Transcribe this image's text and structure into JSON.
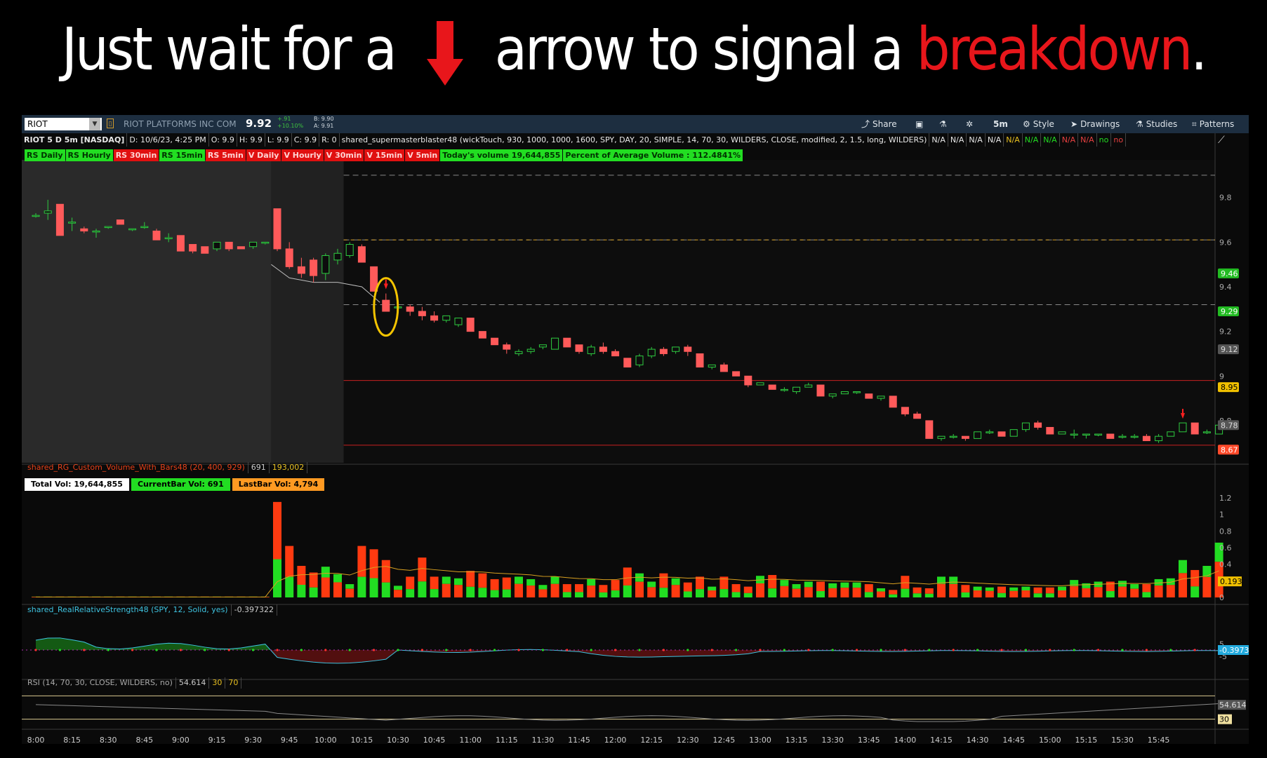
{
  "headline": {
    "pre": "Just wait for a",
    "mid": "arrow to signal a",
    "hl": "breakdown",
    "end": ".",
    "color": "#e8161b"
  },
  "toolbar": {
    "symbol": "RIOT",
    "company": "RIOT PLATFORMS INC COM",
    "last": "9.92",
    "change": "+.91",
    "change_pct": "+10.10%",
    "bid": "B: 9.90",
    "ask": "A: 9.91",
    "buttons": [
      {
        "label": "Share",
        "icon": "share-icon"
      },
      {
        "label": "",
        "icon": "flask-icon"
      },
      {
        "label": "",
        "icon": "lab-icon"
      },
      {
        "label": "",
        "icon": "gear-icon"
      },
      {
        "label": "5m",
        "icon": ""
      },
      {
        "label": "Style",
        "icon": "style-icon"
      },
      {
        "label": "Drawings",
        "icon": "cursor-icon"
      },
      {
        "label": "Studies",
        "icon": "flask-icon"
      },
      {
        "label": "Patterns",
        "icon": "pattern-icon"
      }
    ]
  },
  "subheader": {
    "title": "RIOT 5 D 5m [NASDAQ]",
    "date": "D: 10/6/23, 4:25 PM",
    "open": "O: 9.9",
    "high": "H: 9.9",
    "low": "L: 9.9",
    "close": "C: 9.9",
    "range": "R: 0",
    "study": "shared_supermasterblaster48 (wickTouch, 930, 1000, 1000, 1600, SPY, DAY, 20, SIMPLE, 14, 70, 30, WILDERS, CLOSE, modified, 2, 1.5, long, WILDERS)",
    "flags": [
      {
        "t": "N/A",
        "c": "#e8e8e8"
      },
      {
        "t": "N/A",
        "c": "#e8e8e8"
      },
      {
        "t": "N/A",
        "c": "#e8e8e8"
      },
      {
        "t": "N/A",
        "c": "#e8e8e8"
      },
      {
        "t": "N/A",
        "c": "#e8c020"
      },
      {
        "t": "N/A",
        "c": "#22dd22"
      },
      {
        "t": "N/A",
        "c": "#22dd22"
      },
      {
        "t": "N/A",
        "c": "#e84040"
      },
      {
        "t": "N/A",
        "c": "#e84040"
      },
      {
        "t": "no",
        "c": "#22dd22"
      },
      {
        "t": "no",
        "c": "#e84040"
      }
    ]
  },
  "tags": [
    {
      "t": "RS Daily",
      "c": "g"
    },
    {
      "t": "RS Hourly",
      "c": "g"
    },
    {
      "t": "RS 30min",
      "c": "r"
    },
    {
      "t": "RS 15min",
      "c": "g"
    },
    {
      "t": "RS 5min",
      "c": "r"
    },
    {
      "t": "V Daily",
      "c": "r"
    },
    {
      "t": "V Hourly",
      "c": "r"
    },
    {
      "t": "V 30min",
      "c": "r"
    },
    {
      "t": "V 15min",
      "c": "r"
    },
    {
      "t": "V 5min",
      "c": "r"
    },
    {
      "t": "Today's volume   19,644,855",
      "c": "g"
    },
    {
      "t": "Percent of Average Volume : 112.4841%",
      "c": "g"
    }
  ],
  "price_axis": {
    "ticks": [
      "9.8",
      "9.6",
      "9.4",
      "9.2",
      "9",
      "8.8"
    ],
    "ylim": [
      8.63,
      9.95
    ],
    "labels": [
      {
        "t": "9.46",
        "bg": "#22bb22",
        "fg": "#fff"
      },
      {
        "t": "9.29",
        "bg": "#22bb22",
        "fg": "#fff"
      },
      {
        "t": "9.12",
        "bg": "#555",
        "fg": "#ddd"
      },
      {
        "t": "8.95",
        "bg": "#f0c000",
        "fg": "#000"
      },
      {
        "t": "8.78",
        "bg": "#555",
        "fg": "#ddd"
      },
      {
        "t": "8.67",
        "bg": "#ff4a2a",
        "fg": "#fff"
      }
    ]
  },
  "levels": {
    "dashed": [
      9.9,
      9.61,
      9.32
    ],
    "red": [
      8.98,
      8.69
    ],
    "orange_dashed": [
      9.61
    ]
  },
  "volume_study": {
    "name": "shared_RG_Custom_Volume_With_Bars48 (20, 400, 929)",
    "v1": "691",
    "v2": "193,002",
    "boxes": [
      {
        "t": "Total Vol: 19,644,855",
        "bg": "#fff",
        "fg": "#000"
      },
      {
        "t": "CurrentBar Vol: 691",
        "bg": "#22dd22",
        "fg": "#000"
      },
      {
        "t": "LastBar Vol: 4,794",
        "bg": "#ff9a22",
        "fg": "#000"
      }
    ],
    "ticks": [
      "1.2",
      "1",
      "0.8",
      "0.6",
      "0.4",
      "0.2",
      "0"
    ],
    "ylim": [
      0,
      1.25
    ],
    "label": "0.193"
  },
  "rrs_study": {
    "name": "shared_RealRelativeStrength48 (SPY, 12, Solid, yes)",
    "value": "-0.397322",
    "ticks": [
      "5",
      "-5"
    ],
    "label": "-0.3973"
  },
  "rsi_study": {
    "name": "RSI (14, 70, 30, CLOSE, WILDERS, no)",
    "value": "54.614",
    "ob": "30",
    "os": "70",
    "labels": [
      "54.614",
      "30"
    ]
  },
  "time_axis": [
    "8:00",
    "8:15",
    "8:30",
    "8:45",
    "9:00",
    "9:15",
    "9:30",
    "9:45",
    "10:00",
    "10:15",
    "10:30",
    "10:45",
    "11:00",
    "11:15",
    "11:30",
    "11:45",
    "12:00",
    "12:15",
    "12:30",
    "12:45",
    "13:00",
    "13:15",
    "13:30",
    "13:45",
    "14:00",
    "14:15",
    "14:30",
    "14:45",
    "15:00",
    "15:15",
    "15:30",
    "15:45"
  ],
  "chart_data": {
    "type": "candlestick",
    "x_start": "8:00",
    "interval_min": 5,
    "ohlc": [
      [
        9.72,
        9.73,
        9.71,
        9.72
      ],
      [
        9.73,
        9.79,
        9.7,
        9.74
      ],
      [
        9.77,
        9.77,
        9.63,
        9.63
      ],
      [
        9.69,
        9.71,
        9.65,
        9.69
      ],
      [
        9.66,
        9.67,
        9.64,
        9.65
      ],
      [
        9.65,
        9.66,
        9.62,
        9.65
      ],
      [
        9.67,
        9.67,
        9.66,
        9.67
      ],
      [
        9.7,
        9.7,
        9.68,
        9.68
      ],
      [
        9.66,
        9.66,
        9.65,
        9.66
      ],
      [
        9.67,
        9.69,
        9.66,
        9.67
      ],
      [
        9.65,
        9.66,
        9.61,
        9.61
      ],
      [
        9.62,
        9.64,
        9.6,
        9.62
      ],
      [
        9.63,
        9.63,
        9.56,
        9.56
      ],
      [
        9.59,
        9.59,
        9.55,
        9.56
      ],
      [
        9.58,
        9.58,
        9.55,
        9.55
      ],
      [
        9.57,
        9.6,
        9.56,
        9.6
      ],
      [
        9.6,
        9.6,
        9.56,
        9.57
      ],
      [
        9.58,
        9.58,
        9.57,
        9.57
      ],
      [
        9.58,
        9.6,
        9.57,
        9.6
      ],
      [
        9.6,
        9.6,
        9.59,
        9.6
      ],
      [
        9.75,
        9.75,
        9.56,
        9.57
      ],
      [
        9.57,
        9.6,
        9.48,
        9.49
      ],
      [
        9.49,
        9.53,
        9.44,
        9.46
      ],
      [
        9.52,
        9.53,
        9.42,
        9.45
      ],
      [
        9.46,
        9.55,
        9.43,
        9.54
      ],
      [
        9.52,
        9.57,
        9.5,
        9.55
      ],
      [
        9.54,
        9.6,
        9.53,
        9.59
      ],
      [
        9.58,
        9.59,
        9.51,
        9.51
      ],
      [
        9.49,
        9.49,
        9.38,
        9.38
      ],
      [
        9.34,
        9.37,
        9.29,
        9.29
      ],
      [
        9.31,
        9.32,
        9.28,
        9.31
      ],
      [
        9.31,
        9.32,
        9.27,
        9.29
      ],
      [
        9.29,
        9.31,
        9.25,
        9.27
      ],
      [
        9.27,
        9.29,
        9.24,
        9.25
      ],
      [
        9.25,
        9.27,
        9.24,
        9.27
      ],
      [
        9.23,
        9.26,
        9.22,
        9.26
      ],
      [
        9.26,
        9.26,
        9.2,
        9.2
      ],
      [
        9.2,
        9.2,
        9.17,
        9.17
      ],
      [
        9.17,
        9.17,
        9.14,
        9.14
      ],
      [
        9.14,
        9.15,
        9.1,
        9.12
      ],
      [
        9.1,
        9.12,
        9.09,
        9.11
      ],
      [
        9.11,
        9.13,
        9.1,
        9.12
      ],
      [
        9.13,
        9.14,
        9.12,
        9.14
      ],
      [
        9.12,
        9.17,
        9.12,
        9.17
      ],
      [
        9.17,
        9.17,
        9.13,
        9.13
      ],
      [
        9.14,
        9.14,
        9.1,
        9.11
      ],
      [
        9.1,
        9.14,
        9.09,
        9.13
      ],
      [
        9.13,
        9.15,
        9.1,
        9.11
      ],
      [
        9.11,
        9.12,
        9.09,
        9.09
      ],
      [
        9.08,
        9.08,
        9.04,
        9.04
      ],
      [
        9.05,
        9.1,
        9.04,
        9.09
      ],
      [
        9.09,
        9.13,
        9.08,
        9.12
      ],
      [
        9.12,
        9.13,
        9.09,
        9.1
      ],
      [
        9.11,
        9.13,
        9.1,
        9.13
      ],
      [
        9.13,
        9.14,
        9.09,
        9.11
      ],
      [
        9.1,
        9.1,
        9.04,
        9.04
      ],
      [
        9.04,
        9.05,
        9.03,
        9.05
      ],
      [
        9.05,
        9.06,
        9.02,
        9.02
      ],
      [
        9.02,
        9.02,
        9.0,
        9.0
      ],
      [
        9.0,
        9.0,
        8.95,
        8.96
      ],
      [
        8.96,
        8.97,
        8.96,
        8.97
      ],
      [
        8.96,
        8.96,
        8.94,
        8.94
      ],
      [
        8.94,
        8.95,
        8.93,
        8.94
      ],
      [
        8.93,
        8.95,
        8.92,
        8.95
      ],
      [
        8.95,
        8.97,
        8.95,
        8.96
      ],
      [
        8.96,
        8.96,
        8.91,
        8.91
      ],
      [
        8.91,
        8.92,
        8.9,
        8.92
      ],
      [
        8.92,
        8.93,
        8.92,
        8.93
      ],
      [
        8.93,
        8.93,
        8.92,
        8.93
      ],
      [
        8.92,
        8.92,
        8.9,
        8.9
      ],
      [
        8.9,
        8.91,
        8.89,
        8.91
      ],
      [
        8.91,
        8.91,
        8.86,
        8.86
      ],
      [
        8.86,
        8.86,
        8.82,
        8.83
      ],
      [
        8.83,
        8.84,
        8.81,
        8.81
      ],
      [
        8.8,
        8.8,
        8.72,
        8.72
      ],
      [
        8.72,
        8.73,
        8.71,
        8.73
      ],
      [
        8.73,
        8.74,
        8.72,
        8.73
      ],
      [
        8.73,
        8.73,
        8.71,
        8.72
      ],
      [
        8.72,
        8.75,
        8.72,
        8.75
      ],
      [
        8.75,
        8.76,
        8.74,
        8.75
      ],
      [
        8.75,
        8.75,
        8.73,
        8.73
      ],
      [
        8.73,
        8.76,
        8.73,
        8.76
      ],
      [
        8.76,
        8.79,
        8.75,
        8.79
      ],
      [
        8.79,
        8.8,
        8.76,
        8.77
      ],
      [
        8.77,
        8.77,
        8.74,
        8.74
      ],
      [
        8.74,
        8.75,
        8.74,
        8.75
      ],
      [
        8.74,
        8.76,
        8.72,
        8.74
      ],
      [
        8.74,
        8.74,
        8.72,
        8.74
      ],
      [
        8.74,
        8.74,
        8.73,
        8.74
      ],
      [
        8.74,
        8.74,
        8.72,
        8.72
      ],
      [
        8.73,
        8.74,
        8.72,
        8.73
      ],
      [
        8.73,
        8.74,
        8.72,
        8.73
      ],
      [
        8.73,
        8.74,
        8.71,
        8.71
      ],
      [
        8.71,
        8.74,
        8.7,
        8.73
      ],
      [
        8.73,
        8.75,
        8.73,
        8.75
      ],
      [
        8.75,
        8.79,
        8.75,
        8.79
      ],
      [
        8.79,
        8.79,
        8.74,
        8.74
      ],
      [
        8.75,
        8.76,
        8.74,
        8.75
      ],
      [
        8.74,
        8.78,
        8.74,
        8.78
      ]
    ],
    "volume": [
      0.01,
      0.01,
      0.01,
      0.01,
      0.01,
      0.01,
      0.01,
      0.01,
      0.01,
      0.01,
      0.01,
      0.01,
      0.01,
      0.01,
      0.01,
      0.01,
      0.01,
      0.01,
      0.01,
      0.01,
      1.15,
      0.62,
      0.38,
      0.3,
      0.37,
      0.28,
      0.16,
      0.62,
      0.58,
      0.45,
      0.14,
      0.25,
      0.48,
      0.25,
      0.25,
      0.23,
      0.32,
      0.29,
      0.22,
      0.24,
      0.25,
      0.22,
      0.15,
      0.25,
      0.16,
      0.16,
      0.22,
      0.15,
      0.21,
      0.36,
      0.29,
      0.19,
      0.29,
      0.23,
      0.18,
      0.25,
      0.13,
      0.25,
      0.16,
      0.13,
      0.26,
      0.27,
      0.21,
      0.16,
      0.19,
      0.19,
      0.17,
      0.18,
      0.18,
      0.16,
      0.11,
      0.09,
      0.26,
      0.12,
      0.11,
      0.25,
      0.25,
      0.15,
      0.13,
      0.12,
      0.13,
      0.12,
      0.13,
      0.12,
      0.12,
      0.13,
      0.21,
      0.17,
      0.19,
      0.19,
      0.2,
      0.16,
      0.16,
      0.22,
      0.23,
      0.45,
      0.33,
      0.38,
      0.66
    ]
  },
  "signal_arrows": [
    29,
    95
  ]
}
